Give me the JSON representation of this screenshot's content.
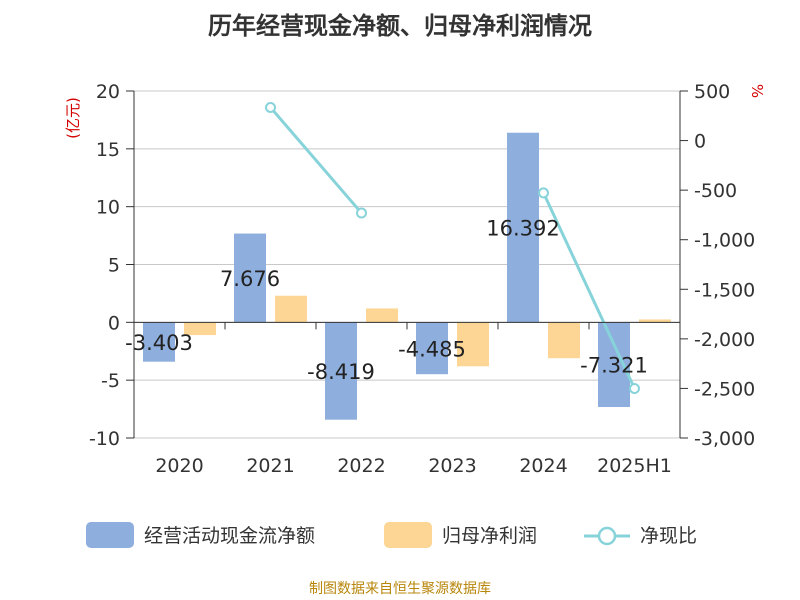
{
  "chart_data": {
    "type": "bar",
    "title": "历年经营现金净额、归母净利润情况",
    "categories": [
      "2020",
      "2021",
      "2022",
      "2023",
      "2024",
      "2025H1"
    ],
    "left_unit": "(亿元)",
    "right_unit": "%",
    "ylim_left": [
      -10,
      20
    ],
    "ylim_right": [
      -3000,
      500
    ],
    "yticks_left": [
      "20",
      "15",
      "10",
      "5",
      "0",
      "-5",
      "-10"
    ],
    "yticks_right": [
      "500",
      "0",
      "-500",
      "-1,000",
      "-1,500",
      "-2,000",
      "-2,500",
      "-3,000"
    ],
    "grid": true,
    "legend_position": "bottom",
    "series": [
      {
        "name": "经营活动现金流净额",
        "kind": "bar",
        "axis": "left",
        "color": "#8eaedd",
        "values": [
          -3.403,
          7.676,
          -8.419,
          -4.485,
          16.392,
          -7.321
        ],
        "labels": [
          "-3.403",
          "7.676",
          "-8.419",
          "-4.485",
          "16.392",
          "-7.321"
        ]
      },
      {
        "name": "归母净利润",
        "kind": "bar",
        "axis": "left",
        "color": "#fdd594",
        "values": [
          -1.1,
          2.3,
          1.2,
          -3.8,
          -3.1,
          0.25
        ]
      },
      {
        "name": "净现比",
        "kind": "line",
        "axis": "right",
        "color": "#87d3da",
        "values": [
          null,
          334,
          -731,
          null,
          -528,
          -2501
        ]
      }
    ],
    "source": "制图数据来自恒生聚源数据库"
  }
}
